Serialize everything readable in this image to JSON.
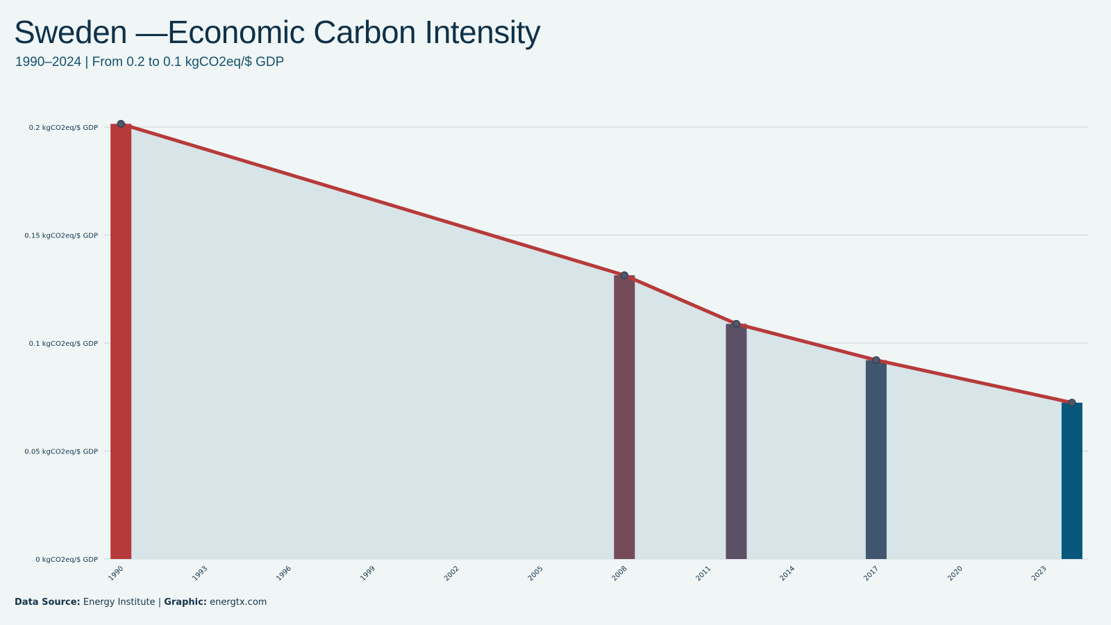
{
  "header": {
    "title": "Sweden —Economic Carbon Intensity",
    "subtitle": "1990–2024 | From 0.2 to 0.1 kgCO2eq/$ GDP"
  },
  "footer": {
    "source_label": "Data Source:",
    "source_value": "Energy Institute",
    "separator": "|",
    "graphic_label": "Graphic:",
    "graphic_value": "energtx.com"
  },
  "colors": {
    "background": "#f0f6f6",
    "area_fill": "#d7e4e8",
    "line": "#b73a3a",
    "grid": "#c7d5da",
    "marker_fill": "#4b5a6e",
    "marker_stroke": "#2f3a4a",
    "title": "#0f3149",
    "subtitle": "#16516e"
  },
  "chart_data": {
    "type": "line",
    "title": "Sweden —Economic Carbon Intensity",
    "subtitle": "1990–2024 | From 0.2 to 0.1 kgCO2eq/$ GDP",
    "xlabel": "",
    "ylabel": "",
    "xlim": [
      1989.4,
      2024.6
    ],
    "ylim": [
      0,
      0.2
    ],
    "y_ticks": [
      0,
      0.05,
      0.1,
      0.15,
      0.2
    ],
    "y_tick_labels": [
      "0 kgCO2eq/$ GDP",
      "0.05 kgCO2eq/$ GDP",
      "0.1 kgCO2eq/$ GDP",
      "0.15 kgCO2eq/$ GDP",
      "0.2 kgCO2eq/$ GDP"
    ],
    "x_ticks": [
      1990,
      1993,
      1996,
      1999,
      2002,
      2005,
      2008,
      2011,
      2014,
      2017,
      2020,
      2023
    ],
    "x_tick_labels": [
      "1990",
      "1993",
      "1996",
      "1999",
      "2002",
      "2005",
      "2008",
      "2011",
      "2014",
      "2017",
      "2020",
      "2023"
    ],
    "grid": true,
    "legend": "none",
    "series": [
      {
        "points": [
          {
            "x": 1990,
            "y": 0.2015
          },
          {
            "x": 2008,
            "y": 0.1314
          },
          {
            "x": 2012,
            "y": 0.1089
          },
          {
            "x": 2017,
            "y": 0.0921
          },
          {
            "x": 2024,
            "y": 0.0724
          }
        ]
      }
    ],
    "highlight_bars": [
      {
        "x": 1990,
        "y": 0.2015,
        "color": "#b73a3a"
      },
      {
        "x": 2008,
        "y": 0.1314,
        "color": "#754b59"
      },
      {
        "x": 2012,
        "y": 0.1089,
        "color": "#5b5066"
      },
      {
        "x": 2017,
        "y": 0.0921,
        "color": "#40566f"
      },
      {
        "x": 2024,
        "y": 0.0724,
        "color": "#05587b"
      }
    ]
  }
}
